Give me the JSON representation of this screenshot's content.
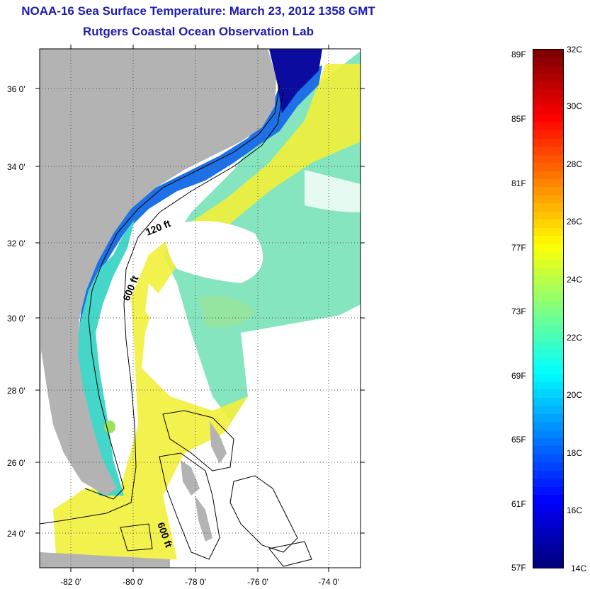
{
  "header": {
    "title": "NOAA-16 Sea Surface Temperature:  March 23, 2012 1358 GMT",
    "subtitle": "Rutgers Coastal Ocean Observation Lab"
  },
  "map": {
    "lat_labels": [
      "36 0'",
      "34 0'",
      "32 0'",
      "30 0'",
      "28 0'",
      "26 0'",
      "24 0'"
    ],
    "lon_labels": [
      "-82 0'",
      "-80 0'",
      "-78 0'",
      "-76 0'",
      "-74 0'"
    ],
    "contour_labels": [
      "120 ft",
      "600 ft",
      "600 ft"
    ],
    "colors": {
      "land": "#b3b3b3",
      "no_data": "#ffffff"
    }
  },
  "colorbar": {
    "fahrenheit_labels": [
      "89F",
      "85F",
      "81F",
      "77F",
      "73F",
      "69F",
      "65F",
      "61F",
      "57F"
    ],
    "celsius_labels": [
      "32C",
      "30C",
      "28C",
      "26C",
      "24C",
      "22C",
      "20C",
      "18C",
      "16C",
      "14C"
    ],
    "range_celsius": [
      14,
      32
    ],
    "colormap": "jet"
  }
}
